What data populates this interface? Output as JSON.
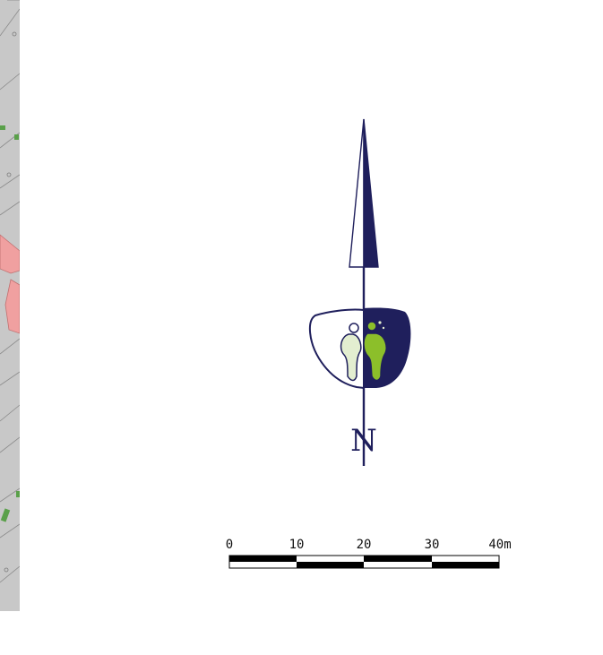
{
  "map": {
    "north_label": "N",
    "scale_labels": [
      "0",
      "10",
      "20",
      "30",
      "40m"
    ],
    "scale_unit": "m",
    "colors": {
      "arrow": "#1f1f5c",
      "logo_green": "#8cbf2a",
      "logo_pale": "#e3eed0",
      "map_bg": "#c8c8c8",
      "building": "#f0a0a0",
      "vegetation": "#5aa04a"
    },
    "icons": [
      "north-arrow-icon",
      "logo-emblem-icon",
      "scale-bar-icon"
    ]
  }
}
